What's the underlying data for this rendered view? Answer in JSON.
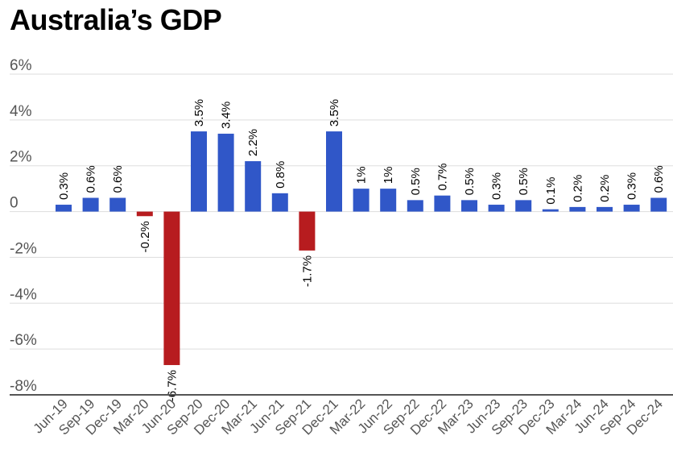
{
  "chart_data": {
    "type": "bar",
    "title": "Australia’s GDP",
    "xlabel": "",
    "ylabel": "",
    "ylim": [
      -8,
      6
    ],
    "yticks": [
      6,
      4,
      2,
      0,
      -2,
      -4,
      -6,
      -8
    ],
    "ytick_labels": [
      "6%",
      "4%",
      "2%",
      "0",
      "-2%",
      "-4%",
      "-6%",
      "-8%"
    ],
    "grid": true,
    "legend": "none",
    "categories": [
      "Jun-19",
      "Sep-19",
      "Dec-19",
      "Mar-20",
      "Jun-20",
      "Sep-20",
      "Dec-20",
      "Mar-21",
      "Jun-21",
      "Sep-21",
      "Dec-21",
      "Mar-22",
      "Jun-22",
      "Sep-22",
      "Dec-22",
      "Mar-23",
      "Jun-23",
      "Sep-23",
      "Dec-23",
      "Mar-24",
      "Jun-24",
      "Sep-24",
      "Dec-24"
    ],
    "values": [
      0.3,
      0.6,
      0.6,
      -0.2,
      -6.7,
      3.5,
      3.4,
      2.2,
      0.8,
      -1.7,
      3.5,
      1,
      1,
      0.5,
      0.7,
      0.5,
      0.3,
      0.5,
      0.1,
      0.2,
      0.2,
      0.3,
      0.6
    ],
    "data_labels": [
      "0.3%",
      "0.6%",
      "0.6%",
      "-0.2%",
      "-6.7%",
      "3.5%",
      "3.4%",
      "2.2%",
      "0.8%",
      "-1.7%",
      "3.5%",
      "1%",
      "1%",
      "0.5%",
      "0.7%",
      "0.5%",
      "0.3%",
      "0.5%",
      "0.1%",
      "0.2%",
      "0.2%",
      "0.3%",
      "0.6%"
    ],
    "colors": {
      "positive": "#3057C8",
      "negative": "#B71C1F",
      "grid": "#dddddd",
      "axis": "#555555"
    }
  }
}
